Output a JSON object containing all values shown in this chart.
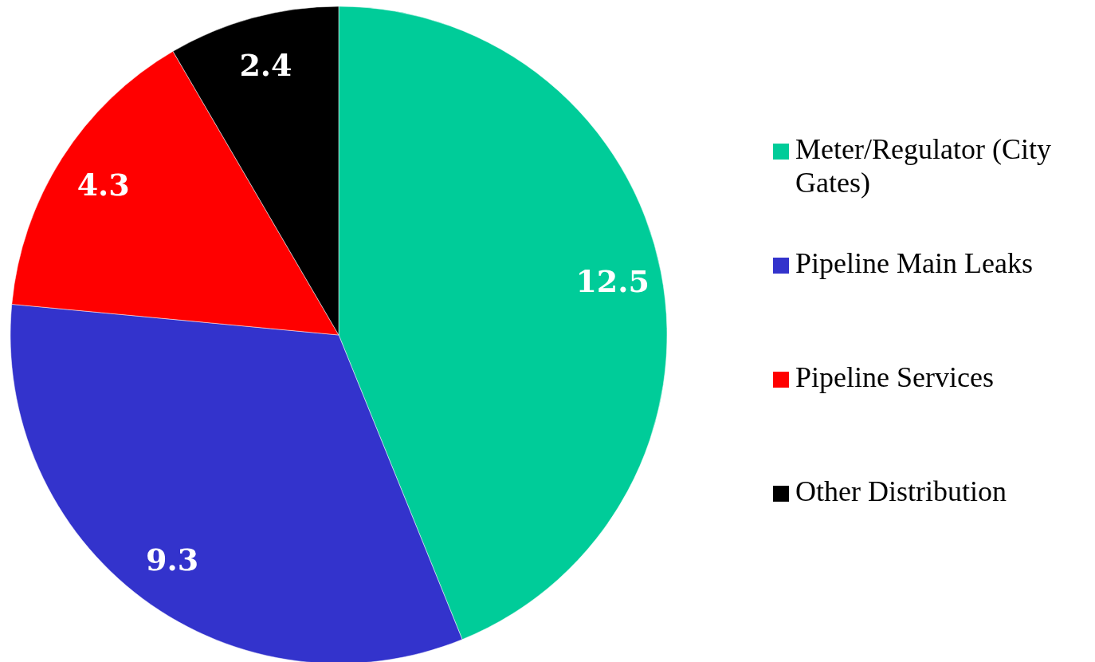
{
  "chart_data": {
    "type": "pie",
    "categories": [
      "Meter/Regulator (City Gates)",
      "Pipeline Main Leaks",
      "Pipeline Services",
      "Other Distribution"
    ],
    "values": [
      12.5,
      9.3,
      4.3,
      2.4
    ],
    "colors": [
      "#00cc99",
      "#3333cc",
      "#ff0000",
      "#000000"
    ],
    "data_labels": true,
    "legend": "right"
  }
}
